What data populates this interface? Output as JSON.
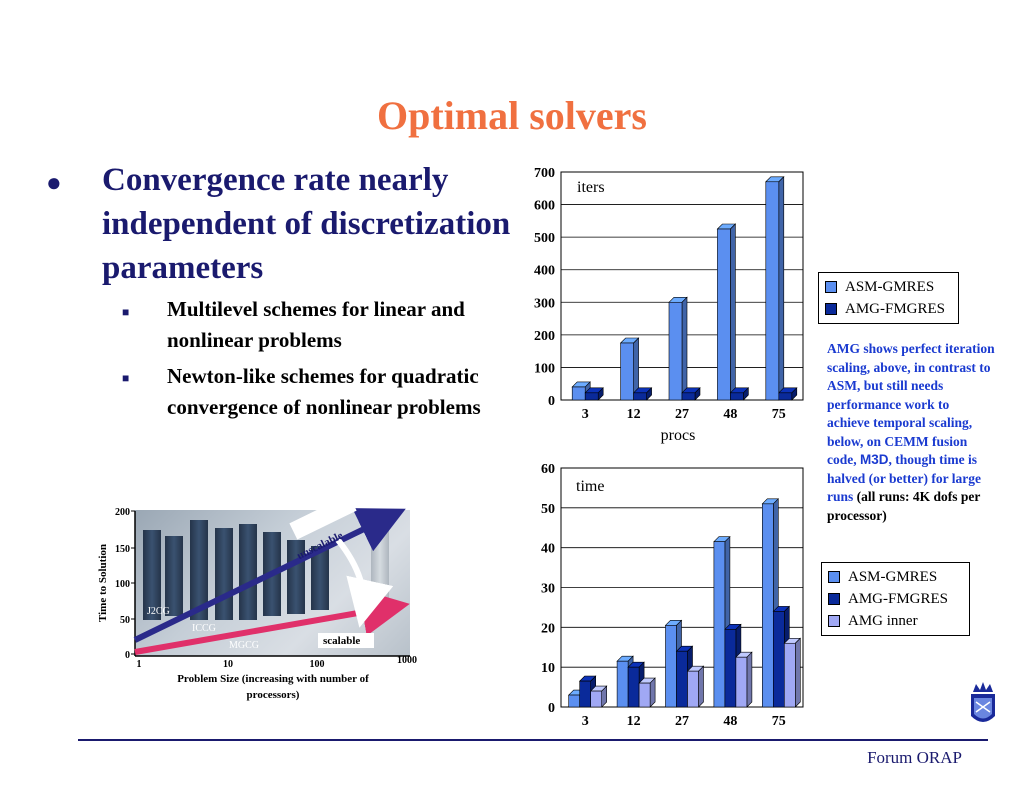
{
  "slide": {
    "title": "Optimal solvers",
    "bullet": "Convergence rate nearly independent of discretization parameters",
    "subs": [
      "Multilevel schemes for linear and nonlinear problems",
      "Newton-like schemes for quadratic convergence of nonlinear problems"
    ],
    "note": {
      "p1": "AMG shows perfect iteration scaling, above, in contrast to ASM, but still needs performance work to achieve temporal scaling, below, on CEMM fusion code,",
      "m3d": "M3D",
      "p2": ", though time is halved (or better) for large runs",
      "p3": " (all runs: 4K dofs per processor)"
    },
    "footer": "Forum ORAP"
  },
  "colors": {
    "title": "#f07040",
    "text": "#1a1a6e",
    "asm": "#5b8ff0",
    "amg": "#0a2a9a",
    "amg_inner": "#a0a8f4"
  },
  "chart_data": [
    {
      "type": "bar",
      "title": "",
      "xlabel": "procs",
      "ylabel": "",
      "inner_label": "iters",
      "categories": [
        "3",
        "12",
        "27",
        "48",
        "75"
      ],
      "series": [
        {
          "name": "ASM-GMRES",
          "values": [
            40,
            175,
            300,
            525,
            670
          ]
        },
        {
          "name": "AMG-FMGRES",
          "values": [
            22,
            22,
            22,
            22,
            22
          ]
        }
      ],
      "ylim": [
        0,
        700
      ],
      "yticks": [
        "0",
        "100",
        "200",
        "300",
        "400",
        "500",
        "600",
        "700"
      ],
      "grid": true,
      "legend": "right"
    },
    {
      "type": "bar",
      "title": "",
      "xlabel": "",
      "ylabel": "",
      "inner_label": "time",
      "categories": [
        "3",
        "12",
        "27",
        "48",
        "75"
      ],
      "series": [
        {
          "name": "ASM-GMRES",
          "values": [
            3,
            11.5,
            20.5,
            41.5,
            51
          ]
        },
        {
          "name": "AMG-FMGRES",
          "values": [
            6.5,
            10,
            14,
            19.5,
            24
          ]
        },
        {
          "name": "AMG inner",
          "values": [
            4,
            6,
            9,
            12.5,
            16
          ]
        }
      ],
      "ylim": [
        0,
        60
      ],
      "yticks": [
        "0",
        "10",
        "20",
        "30",
        "40",
        "50",
        "60"
      ],
      "grid": true,
      "legend": "right"
    },
    {
      "type": "line",
      "title": "",
      "xlabel": "Problem Size (increasing with number of processors)",
      "ylabel": "Time to Solution",
      "xticks": [
        "1",
        "10",
        "100",
        "1000"
      ],
      "yticks": [
        "0",
        "50",
        "100",
        "150",
        "200"
      ],
      "series": [
        {
          "name": "unscalable"
        },
        {
          "name": "scalable"
        }
      ],
      "image_labels": [
        "J2CG",
        "ICCG",
        "MGCG"
      ]
    }
  ]
}
